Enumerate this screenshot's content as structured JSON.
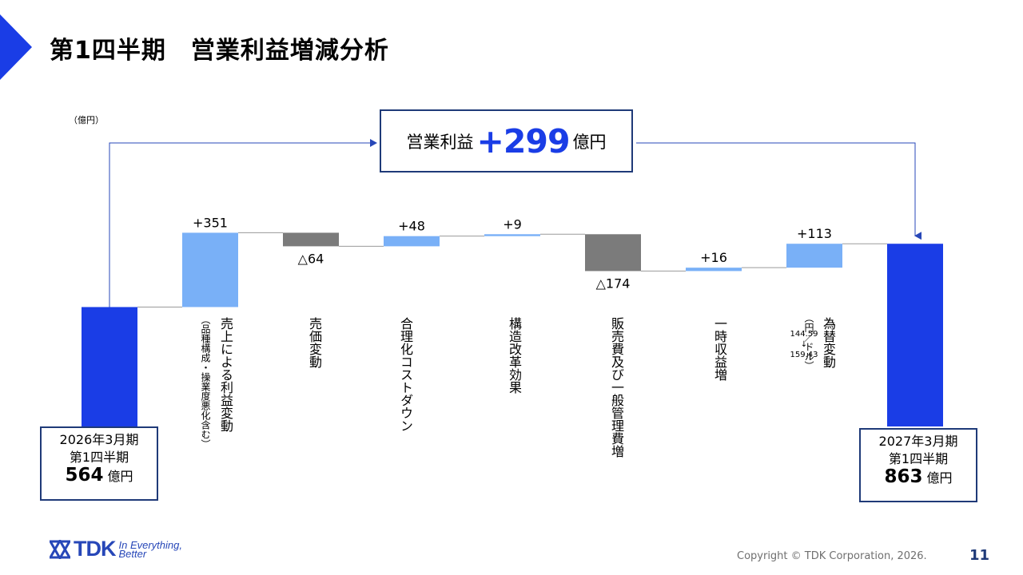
{
  "title": "第1四半期　営業利益増減分析",
  "unit_label": "（億円）",
  "operating_profit_box": {
    "label": "営業利益",
    "value": "+299",
    "unit": "億円"
  },
  "chart_data": {
    "type": "waterfall",
    "unit": "億円",
    "start": {
      "value": 564
    },
    "end": {
      "value": 863
    },
    "steps": [
      {
        "label": "売上による利益変動",
        "note": "（品種構成・操業度悪化含む）",
        "value": 351,
        "display": "+351"
      },
      {
        "label": "売価変動",
        "value": -64,
        "display": "△64"
      },
      {
        "label": "合理化コストダウン",
        "value": 48,
        "display": "+48"
      },
      {
        "label": "構造改革効果",
        "value": 9,
        "display": "+9"
      },
      {
        "label": "販売費及び一般管理費増",
        "value": -174,
        "display": "△174"
      },
      {
        "label": "一時収益増",
        "value": 16,
        "display": "+16"
      },
      {
        "label": "為替変動",
        "note": "（円／ドル）",
        "rate_from": "144.59",
        "rate_arrow": "↓",
        "rate_to": "159.43",
        "value": 113,
        "display": "+113"
      }
    ],
    "colors": {
      "total": "#1a3de6",
      "increase": "#79b0f7",
      "decrease": "#7b7b7b",
      "connector": "#9a9a9a",
      "arrow": "#2747b8"
    }
  },
  "start_box": {
    "line1": "2026年3月期",
    "line2": "第1四半期",
    "value": "564",
    "unit": "億円"
  },
  "end_box": {
    "line1": "2027年3月期",
    "line2": "第1四半期",
    "value": "863",
    "unit": "億円"
  },
  "footer": {
    "logo_text": "TDK",
    "logo_tagline_1": "In Everything,",
    "logo_tagline_2": "Better",
    "copyright": "Copyright  © TDK Corporation, 2026.",
    "page_number": "11"
  }
}
